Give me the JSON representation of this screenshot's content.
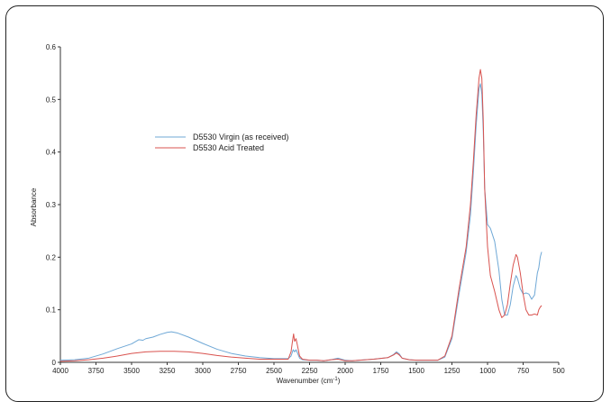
{
  "chart_data": {
    "type": "line",
    "xlabel": "Wavenumber  (cm",
    "xlabel_sup": "-1",
    "xlabel_close": ")",
    "ylabel": "Absorbance",
    "xlim": [
      4000,
      500
    ],
    "ylim": [
      0,
      0.6
    ],
    "x_ticks": [
      "4000",
      "3750",
      "3500",
      "3250",
      "3000",
      "2750",
      "2500",
      "2250",
      "2000",
      "1750",
      "1500",
      "1250",
      "1000",
      "750",
      "500"
    ],
    "y_ticks": [
      "0",
      "0.1",
      "0.2",
      "0.3",
      "0.4",
      "0.5",
      "0.6"
    ],
    "grid": false,
    "legend_position": "upper-left-center",
    "series": [
      {
        "name": "D5530 Virgin (as received)",
        "color": "#6fa8d6",
        "points": [
          [
            4000,
            0.004
          ],
          [
            3900,
            0.005
          ],
          [
            3800,
            0.008
          ],
          [
            3700,
            0.016
          ],
          [
            3600,
            0.026
          ],
          [
            3500,
            0.035
          ],
          [
            3450,
            0.043
          ],
          [
            3420,
            0.042
          ],
          [
            3400,
            0.045
          ],
          [
            3350,
            0.048
          ],
          [
            3300,
            0.053
          ],
          [
            3250,
            0.057
          ],
          [
            3220,
            0.058
          ],
          [
            3180,
            0.056
          ],
          [
            3100,
            0.048
          ],
          [
            3000,
            0.036
          ],
          [
            2900,
            0.025
          ],
          [
            2800,
            0.017
          ],
          [
            2700,
            0.012
          ],
          [
            2600,
            0.009
          ],
          [
            2500,
            0.007
          ],
          [
            2400,
            0.007
          ],
          [
            2380,
            0.012
          ],
          [
            2365,
            0.024
          ],
          [
            2355,
            0.02
          ],
          [
            2345,
            0.024
          ],
          [
            2335,
            0.018
          ],
          [
            2320,
            0.008
          ],
          [
            2300,
            0.005
          ],
          [
            2250,
            0.004
          ],
          [
            2200,
            0.004
          ],
          [
            2150,
            0.003
          ],
          [
            2100,
            0.005
          ],
          [
            2050,
            0.008
          ],
          [
            2000,
            0.004
          ],
          [
            1950,
            0.003
          ],
          [
            1900,
            0.004
          ],
          [
            1800,
            0.006
          ],
          [
            1700,
            0.009
          ],
          [
            1660,
            0.015
          ],
          [
            1640,
            0.02
          ],
          [
            1620,
            0.016
          ],
          [
            1600,
            0.008
          ],
          [
            1550,
            0.005
          ],
          [
            1500,
            0.004
          ],
          [
            1400,
            0.004
          ],
          [
            1350,
            0.004
          ],
          [
            1300,
            0.01
          ],
          [
            1250,
            0.045
          ],
          [
            1200,
            0.13
          ],
          [
            1150,
            0.21
          ],
          [
            1120,
            0.28
          ],
          [
            1100,
            0.36
          ],
          [
            1080,
            0.45
          ],
          [
            1060,
            0.52
          ],
          [
            1050,
            0.53
          ],
          [
            1040,
            0.51
          ],
          [
            1030,
            0.44
          ],
          [
            1020,
            0.33
          ],
          [
            1000,
            0.262
          ],
          [
            980,
            0.255
          ],
          [
            950,
            0.23
          ],
          [
            920,
            0.175
          ],
          [
            900,
            0.12
          ],
          [
            880,
            0.09
          ],
          [
            860,
            0.09
          ],
          [
            840,
            0.11
          ],
          [
            820,
            0.145
          ],
          [
            800,
            0.165
          ],
          [
            790,
            0.16
          ],
          [
            770,
            0.14
          ],
          [
            750,
            0.13
          ],
          [
            730,
            0.132
          ],
          [
            710,
            0.13
          ],
          [
            690,
            0.12
          ],
          [
            670,
            0.128
          ],
          [
            650,
            0.17
          ],
          [
            640,
            0.18
          ],
          [
            630,
            0.2
          ],
          [
            620,
            0.21
          ]
        ]
      },
      {
        "name": "D5530 Acid Treated",
        "color": "#d9534f",
        "points": [
          [
            4000,
            0.002
          ],
          [
            3900,
            0.003
          ],
          [
            3800,
            0.005
          ],
          [
            3700,
            0.008
          ],
          [
            3600,
            0.012
          ],
          [
            3500,
            0.017
          ],
          [
            3400,
            0.02
          ],
          [
            3300,
            0.021
          ],
          [
            3200,
            0.021
          ],
          [
            3100,
            0.02
          ],
          [
            3000,
            0.017
          ],
          [
            2900,
            0.013
          ],
          [
            2800,
            0.01
          ],
          [
            2700,
            0.008
          ],
          [
            2600,
            0.006
          ],
          [
            2500,
            0.006
          ],
          [
            2400,
            0.006
          ],
          [
            2380,
            0.02
          ],
          [
            2370,
            0.04
          ],
          [
            2362,
            0.054
          ],
          [
            2355,
            0.04
          ],
          [
            2345,
            0.045
          ],
          [
            2335,
            0.032
          ],
          [
            2320,
            0.012
          ],
          [
            2300,
            0.006
          ],
          [
            2250,
            0.004
          ],
          [
            2200,
            0.004
          ],
          [
            2150,
            0.003
          ],
          [
            2100,
            0.005
          ],
          [
            2050,
            0.006
          ],
          [
            2000,
            0.003
          ],
          [
            1950,
            0.003
          ],
          [
            1900,
            0.004
          ],
          [
            1800,
            0.006
          ],
          [
            1700,
            0.009
          ],
          [
            1660,
            0.014
          ],
          [
            1640,
            0.018
          ],
          [
            1620,
            0.014
          ],
          [
            1600,
            0.008
          ],
          [
            1550,
            0.005
          ],
          [
            1500,
            0.004
          ],
          [
            1400,
            0.004
          ],
          [
            1350,
            0.004
          ],
          [
            1300,
            0.012
          ],
          [
            1250,
            0.05
          ],
          [
            1200,
            0.14
          ],
          [
            1150,
            0.22
          ],
          [
            1120,
            0.3
          ],
          [
            1100,
            0.38
          ],
          [
            1080,
            0.47
          ],
          [
            1060,
            0.54
          ],
          [
            1050,
            0.557
          ],
          [
            1040,
            0.54
          ],
          [
            1030,
            0.46
          ],
          [
            1020,
            0.33
          ],
          [
            1000,
            0.22
          ],
          [
            980,
            0.165
          ],
          [
            950,
            0.135
          ],
          [
            920,
            0.1
          ],
          [
            900,
            0.085
          ],
          [
            880,
            0.09
          ],
          [
            860,
            0.11
          ],
          [
            840,
            0.15
          ],
          [
            820,
            0.185
          ],
          [
            800,
            0.205
          ],
          [
            790,
            0.2
          ],
          [
            770,
            0.17
          ],
          [
            750,
            0.13
          ],
          [
            730,
            0.1
          ],
          [
            710,
            0.09
          ],
          [
            690,
            0.09
          ],
          [
            670,
            0.092
          ],
          [
            650,
            0.09
          ],
          [
            640,
            0.1
          ],
          [
            630,
            0.105
          ],
          [
            620,
            0.108
          ]
        ]
      }
    ]
  }
}
